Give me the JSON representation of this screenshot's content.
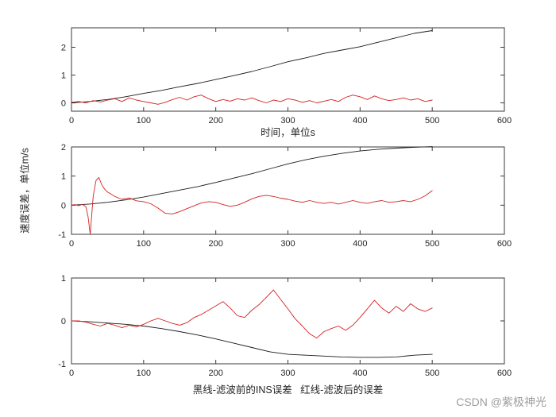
{
  "figure": {
    "ylabel": "速度误差，单位m/s",
    "caption": "黑线-滤波前的INS误差   红线-滤波后的误差",
    "watermark": "CSDN @紫极神光"
  },
  "chart_data": [
    {
      "type": "line",
      "title": "",
      "xlabel": "时间，单位s",
      "ylabel": "",
      "xlim": [
        0,
        600
      ],
      "ylim": [
        -0.3,
        2.7
      ],
      "xticks": [
        0,
        100,
        200,
        300,
        400,
        500,
        600
      ],
      "yticks": [
        0,
        1,
        2
      ],
      "grid": false,
      "legend_position": "none",
      "series": [
        {
          "name": "滤波前的INS误差",
          "color": "#1a1a1a",
          "x": [
            0,
            25,
            50,
            75,
            100,
            125,
            150,
            175,
            200,
            225,
            250,
            275,
            300,
            325,
            350,
            375,
            400,
            425,
            450,
            475,
            500
          ],
          "y": [
            0,
            0.05,
            0.12,
            0.22,
            0.34,
            0.45,
            0.58,
            0.7,
            0.84,
            0.98,
            1.13,
            1.3,
            1.48,
            1.62,
            1.78,
            1.9,
            2.02,
            2.18,
            2.34,
            2.5,
            2.6
          ]
        },
        {
          "name": "滤波后的误差",
          "color": "#d42222",
          "x": [
            0,
            10,
            20,
            30,
            40,
            50,
            60,
            70,
            80,
            90,
            100,
            110,
            120,
            130,
            140,
            150,
            160,
            170,
            180,
            190,
            200,
            210,
            220,
            230,
            240,
            250,
            260,
            270,
            280,
            290,
            300,
            310,
            320,
            330,
            340,
            350,
            360,
            370,
            380,
            390,
            400,
            410,
            420,
            430,
            440,
            450,
            460,
            470,
            480,
            490,
            500
          ],
          "y": [
            0.02,
            0.05,
            0.0,
            0.08,
            0.03,
            0.1,
            0.15,
            0.05,
            0.18,
            0.1,
            0.05,
            0.0,
            -0.05,
            0.02,
            0.12,
            0.2,
            0.1,
            0.22,
            0.28,
            0.15,
            0.05,
            0.12,
            0.06,
            0.15,
            0.1,
            0.18,
            0.08,
            0.0,
            0.1,
            0.05,
            0.15,
            0.1,
            0.02,
            0.08,
            0.0,
            0.06,
            0.12,
            0.05,
            0.2,
            0.28,
            0.22,
            0.12,
            0.25,
            0.15,
            0.08,
            0.12,
            0.18,
            0.1,
            0.15,
            0.05,
            0.1
          ]
        }
      ]
    },
    {
      "type": "line",
      "title": "",
      "xlabel": "",
      "ylabel": "",
      "xlim": [
        0,
        600
      ],
      "ylim": [
        -1,
        2
      ],
      "xticks": [
        0,
        100,
        200,
        300,
        400,
        500,
        600
      ],
      "yticks": [
        -1,
        0,
        1,
        2
      ],
      "grid": false,
      "legend_position": "none",
      "series": [
        {
          "name": "滤波前的INS误差",
          "color": "#1a1a1a",
          "x": [
            0,
            25,
            50,
            75,
            100,
            125,
            150,
            175,
            200,
            225,
            250,
            275,
            300,
            325,
            350,
            375,
            400,
            425,
            450,
            475,
            500
          ],
          "y": [
            0,
            0.04,
            0.1,
            0.18,
            0.28,
            0.4,
            0.52,
            0.64,
            0.78,
            0.93,
            1.08,
            1.25,
            1.42,
            1.56,
            1.68,
            1.78,
            1.86,
            1.92,
            1.96,
            1.99,
            2.01
          ]
        },
        {
          "name": "滤波后的误差",
          "color": "#d42222",
          "x": [
            0,
            5,
            10,
            15,
            20,
            23,
            26,
            30,
            34,
            38,
            42,
            46,
            50,
            60,
            70,
            80,
            90,
            100,
            110,
            120,
            130,
            140,
            150,
            160,
            170,
            180,
            190,
            200,
            210,
            220,
            230,
            240,
            250,
            260,
            270,
            280,
            290,
            300,
            310,
            320,
            330,
            340,
            350,
            360,
            370,
            380,
            390,
            400,
            410,
            420,
            430,
            440,
            450,
            460,
            470,
            480,
            490,
            500
          ],
          "y": [
            0,
            0.02,
            -0.02,
            0.03,
            -0.05,
            -0.4,
            -1.0,
            0.3,
            0.85,
            0.95,
            0.7,
            0.55,
            0.45,
            0.3,
            0.2,
            0.25,
            0.15,
            0.12,
            0.05,
            -0.1,
            -0.28,
            -0.3,
            -0.22,
            -0.12,
            -0.02,
            0.08,
            0.12,
            0.1,
            0.02,
            -0.04,
            0.0,
            0.1,
            0.22,
            0.3,
            0.34,
            0.3,
            0.24,
            0.2,
            0.14,
            0.1,
            0.16,
            0.1,
            0.06,
            0.1,
            0.04,
            0.1,
            0.16,
            0.1,
            0.06,
            0.12,
            0.16,
            0.1,
            0.12,
            0.16,
            0.12,
            0.2,
            0.32,
            0.5
          ]
        }
      ]
    },
    {
      "type": "line",
      "title": "",
      "xlabel": "",
      "ylabel": "",
      "xlim": [
        0,
        600
      ],
      "ylim": [
        -1,
        1
      ],
      "xticks": [
        0,
        100,
        200,
        300,
        400,
        500,
        600
      ],
      "yticks": [
        -1,
        0,
        1
      ],
      "grid": false,
      "legend_position": "none",
      "series": [
        {
          "name": "滤波前的INS误差",
          "color": "#1a1a1a",
          "x": [
            0,
            25,
            50,
            75,
            100,
            125,
            150,
            175,
            200,
            225,
            250,
            275,
            300,
            325,
            350,
            375,
            400,
            425,
            450,
            475,
            500
          ],
          "y": [
            0,
            -0.02,
            -0.05,
            -0.08,
            -0.12,
            -0.18,
            -0.25,
            -0.33,
            -0.42,
            -0.52,
            -0.62,
            -0.72,
            -0.78,
            -0.8,
            -0.82,
            -0.84,
            -0.85,
            -0.85,
            -0.84,
            -0.8,
            -0.78
          ]
        },
        {
          "name": "滤波后的误差",
          "color": "#d42222",
          "x": [
            0,
            10,
            20,
            30,
            40,
            50,
            60,
            70,
            80,
            90,
            100,
            110,
            120,
            130,
            140,
            150,
            160,
            170,
            180,
            190,
            200,
            210,
            220,
            230,
            240,
            250,
            260,
            270,
            280,
            290,
            300,
            310,
            320,
            330,
            340,
            350,
            360,
            370,
            380,
            390,
            400,
            410,
            420,
            430,
            440,
            450,
            460,
            470,
            480,
            490,
            500
          ],
          "y": [
            0,
            0.0,
            -0.03,
            -0.08,
            -0.12,
            -0.06,
            -0.1,
            -0.16,
            -0.1,
            -0.14,
            -0.08,
            0.0,
            0.06,
            0.0,
            -0.06,
            -0.1,
            -0.04,
            0.08,
            0.15,
            0.25,
            0.35,
            0.45,
            0.3,
            0.12,
            0.08,
            0.25,
            0.38,
            0.55,
            0.72,
            0.5,
            0.28,
            0.05,
            -0.12,
            -0.3,
            -0.4,
            -0.25,
            -0.18,
            -0.12,
            -0.22,
            -0.1,
            0.08,
            0.28,
            0.48,
            0.3,
            0.18,
            0.34,
            0.22,
            0.4,
            0.28,
            0.22,
            0.3
          ]
        }
      ]
    }
  ]
}
